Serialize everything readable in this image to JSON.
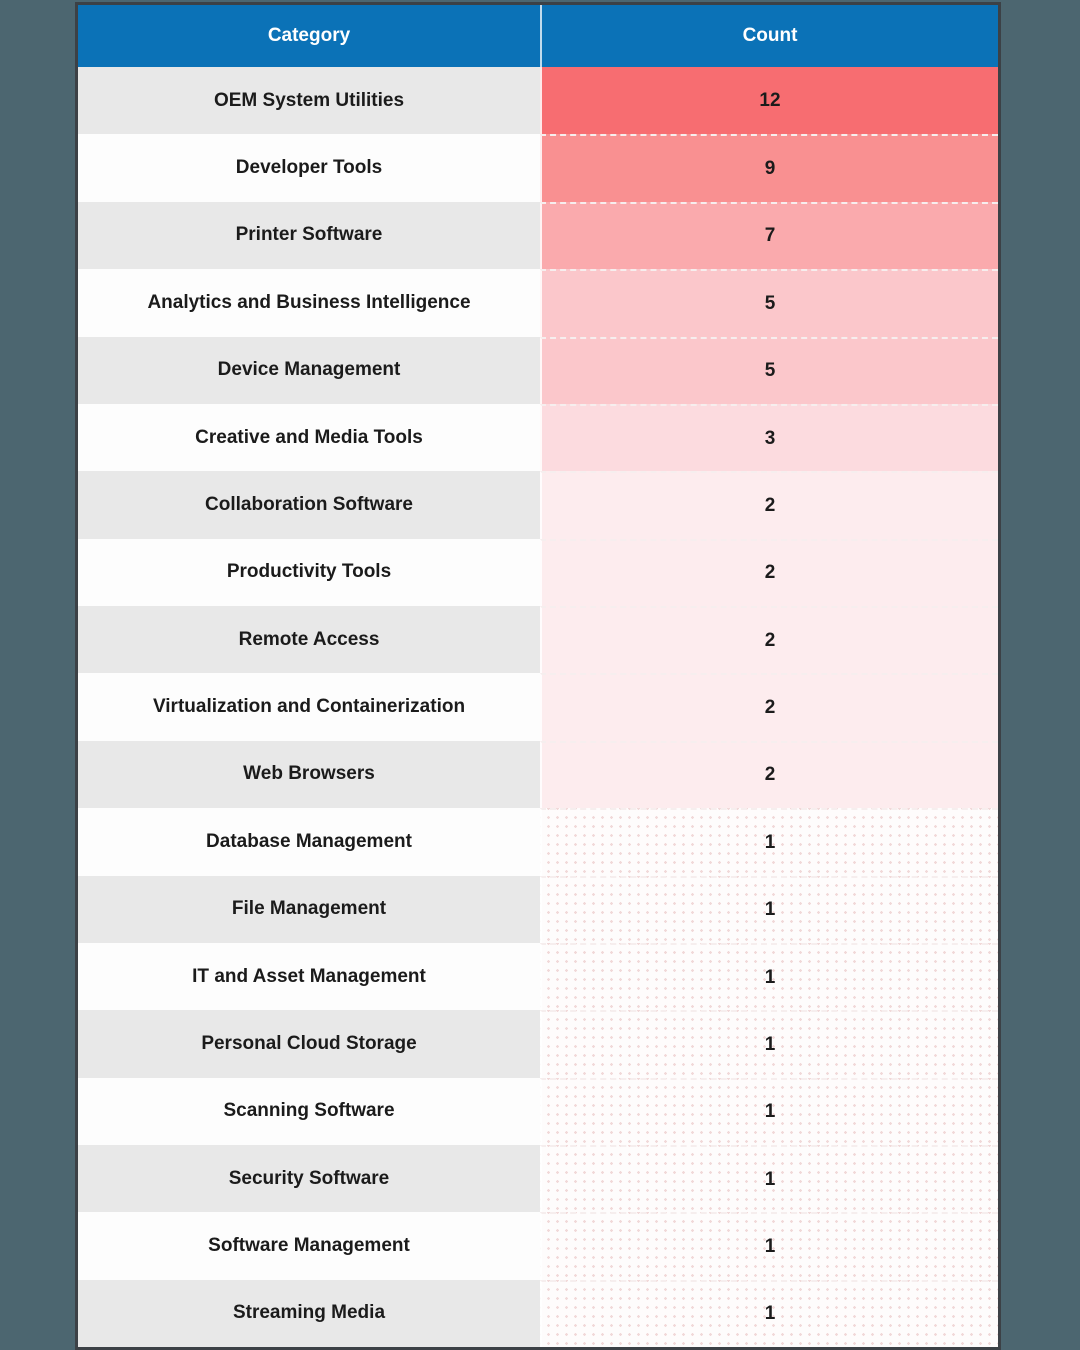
{
  "page": {
    "background_color": "#4c6670",
    "table_border_color": "#3c4146"
  },
  "table": {
    "header": {
      "category_label": "Category",
      "count_label": "Count",
      "background": "#0b72b7",
      "text_color": "#ffffff"
    },
    "row_colors": {
      "odd": "#e8e8e8",
      "even": "#fdfdfd"
    },
    "rows": [
      {
        "category": "OEM System Utilities",
        "count": "12",
        "count_bg": "#f76d71",
        "dotted": false
      },
      {
        "category": "Developer Tools",
        "count": "9",
        "count_bg": "#f99091",
        "dotted": false
      },
      {
        "category": "Printer Software",
        "count": "7",
        "count_bg": "#faaaad",
        "dotted": false
      },
      {
        "category": "Analytics and Business Intelligence",
        "count": "5",
        "count_bg": "#fbc7cb",
        "dotted": false
      },
      {
        "category": "Device Management",
        "count": "5",
        "count_bg": "#fbc7cb",
        "dotted": false
      },
      {
        "category": "Creative and Media Tools",
        "count": "3",
        "count_bg": "#fcdbdf",
        "dotted": false
      },
      {
        "category": "Collaboration Software",
        "count": "2",
        "count_bg": "#fdecee",
        "dotted": false
      },
      {
        "category": "Productivity Tools",
        "count": "2",
        "count_bg": "#fdecee",
        "dotted": false
      },
      {
        "category": "Remote Access",
        "count": "2",
        "count_bg": "#fdecee",
        "dotted": false
      },
      {
        "category": "Virtualization and Containerization",
        "count": "2",
        "count_bg": "#fdecee",
        "dotted": false
      },
      {
        "category": "Web Browsers",
        "count": "2",
        "count_bg": "#fdecee",
        "dotted": false
      },
      {
        "category": "Database Management",
        "count": "1",
        "count_bg": "#fefcfc",
        "dotted": true
      },
      {
        "category": "File Management",
        "count": "1",
        "count_bg": "#fefcfc",
        "dotted": true
      },
      {
        "category": "IT and Asset Management",
        "count": "1",
        "count_bg": "#fefcfc",
        "dotted": true
      },
      {
        "category": "Personal Cloud Storage",
        "count": "1",
        "count_bg": "#fefcfc",
        "dotted": true
      },
      {
        "category": "Scanning Software",
        "count": "1",
        "count_bg": "#fefcfc",
        "dotted": true
      },
      {
        "category": "Security Software",
        "count": "1",
        "count_bg": "#fefcfc",
        "dotted": true
      },
      {
        "category": "Software Management",
        "count": "1",
        "count_bg": "#fefcfc",
        "dotted": true
      },
      {
        "category": "Streaming Media",
        "count": "1",
        "count_bg": "#fefcfc",
        "dotted": true
      }
    ]
  },
  "chart_data": {
    "type": "table",
    "columns": [
      "Category",
      "Count"
    ],
    "categories": [
      "OEM System Utilities",
      "Developer Tools",
      "Printer Software",
      "Analytics and Business Intelligence",
      "Device Management",
      "Creative and Media Tools",
      "Collaboration Software",
      "Productivity Tools",
      "Remote Access",
      "Virtualization and Containerization",
      "Web Browsers",
      "Database Management",
      "File Management",
      "IT and Asset Management",
      "Personal Cloud Storage",
      "Scanning Software",
      "Security Software",
      "Software Management",
      "Streaming Media"
    ],
    "values": [
      12,
      9,
      7,
      5,
      5,
      3,
      2,
      2,
      2,
      2,
      2,
      1,
      1,
      1,
      1,
      1,
      1,
      1,
      1
    ],
    "layout_hints": {
      "count_column_heatmap": {
        "high_color": "#f76d71",
        "low_color": "#fefcfc"
      },
      "header_background": "#0b72b7",
      "alternating_row_colors": [
        "#e8e8e8",
        "#fdfdfd"
      ]
    }
  }
}
